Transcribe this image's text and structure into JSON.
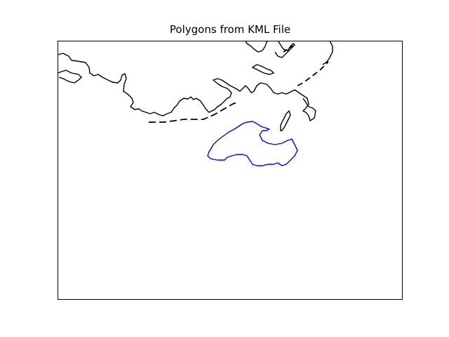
{
  "map": {
    "title": "Polygons from KML File",
    "axes_ticks_visible": false,
    "colors": {
      "background": "#ffffff",
      "frame": "#000000",
      "coastline": "#000000",
      "polygon": "#0000ff"
    }
  }
}
